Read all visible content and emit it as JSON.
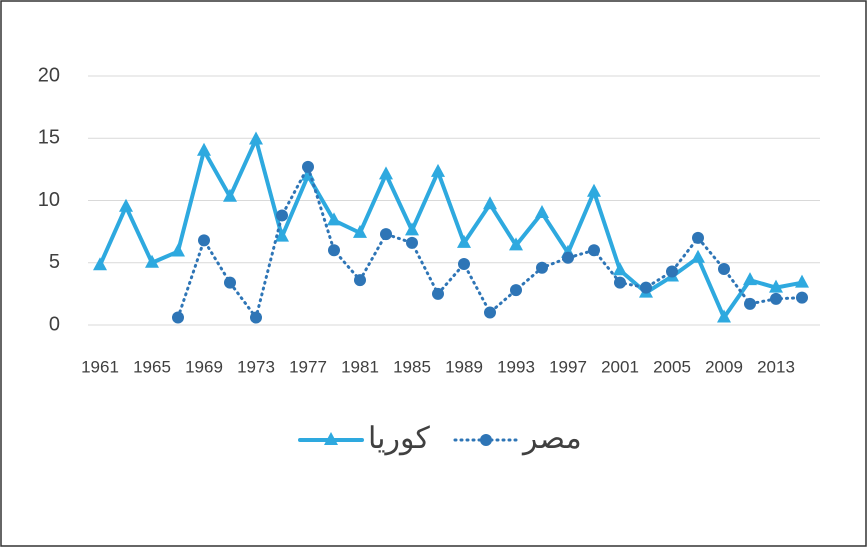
{
  "chart_data": {
    "type": "line",
    "categories": [
      "1961",
      null,
      "1965",
      null,
      "1969",
      null,
      "1973",
      null,
      "1977",
      null,
      "1981",
      null,
      "1985",
      null,
      "1989",
      null,
      "1993",
      null,
      "1997",
      null,
      "2001",
      null,
      "2005",
      null,
      "2009",
      null,
      "2013",
      null
    ],
    "series": [
      {
        "name": "كوريا",
        "color": "#2ea9df",
        "marker": "triangle",
        "dash": "solid",
        "values": [
          4.8,
          9.5,
          5.0,
          5.9,
          14.0,
          10.3,
          14.9,
          7.1,
          12.0,
          8.4,
          7.4,
          12.1,
          7.6,
          12.3,
          6.6,
          9.7,
          6.4,
          9.0,
          5.8,
          10.7,
          4.4,
          2.6,
          3.9,
          5.4,
          0.6,
          3.6,
          3.0,
          3.4
        ]
      },
      {
        "name": "مصر",
        "color": "#2e75b6",
        "marker": "circle",
        "dash": "dotted",
        "values": [
          null,
          null,
          null,
          0.6,
          6.8,
          3.4,
          0.6,
          8.8,
          12.7,
          6.0,
          3.6,
          7.3,
          6.6,
          2.5,
          4.9,
          1.0,
          2.8,
          4.6,
          5.4,
          6.0,
          3.4,
          3.0,
          4.3,
          7.0,
          4.5,
          1.7,
          2.1,
          2.2
        ]
      }
    ],
    "ylim": [
      0,
      20
    ],
    "yticks": [
      0,
      5,
      10,
      15,
      20
    ],
    "grid": true,
    "legend": "bottom"
  }
}
